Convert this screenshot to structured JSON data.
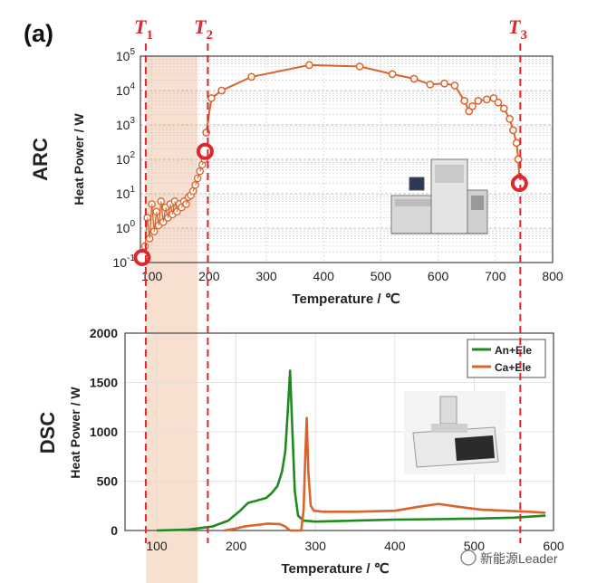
{
  "panel_label": "(a)",
  "watermark": "新能源Leader",
  "colors": {
    "orange": "#d9642b",
    "green": "#1f8a1f",
    "red": "#e0262b",
    "band": "#f6d6c2",
    "grid": "#c8c8c8"
  },
  "markers": {
    "t1": {
      "letter": "T",
      "sub": "1"
    },
    "t2": {
      "letter": "T",
      "sub": "2"
    },
    "t3": {
      "letter": "T",
      "sub": "3"
    }
  },
  "chart_data": [
    {
      "type": "scatter",
      "title": "",
      "side_label": "ARC",
      "xlabel": "Temperature / ℃",
      "ylabel": "Heat Power / W",
      "xlim": [
        80,
        800
      ],
      "ylim": [
        0.1,
        100000
      ],
      "yscale": "log",
      "grid": true,
      "xticks": [
        100,
        200,
        300,
        400,
        500,
        600,
        700,
        800
      ],
      "yticks": [
        {
          "value": 0.1,
          "base": "10",
          "exp": "-1"
        },
        {
          "value": 1,
          "base": "10",
          "exp": "0"
        },
        {
          "value": 10,
          "base": "10",
          "exp": "1"
        },
        {
          "value": 100,
          "base": "10",
          "exp": "2"
        },
        {
          "value": 1000,
          "base": "10",
          "exp": "3"
        },
        {
          "value": 10000,
          "base": "10",
          "exp": "4"
        },
        {
          "value": 100000,
          "base": "10",
          "exp": "5"
        }
      ],
      "early_region": {
        "x": [
          88,
          92,
          96,
          100,
          104,
          108,
          112,
          116,
          120,
          124,
          128,
          132,
          136,
          140,
          144,
          148,
          152,
          156,
          160,
          164,
          168,
          172,
          176,
          180,
          184,
          188,
          192
        ],
        "y": [
          0.3,
          2,
          0.5,
          5,
          0.8,
          3,
          1.2,
          6,
          1.5,
          4,
          2,
          5,
          2.5,
          6,
          3,
          5,
          4,
          6,
          5,
          8,
          9,
          12,
          18,
          28,
          45,
          70,
          100
        ]
      },
      "series": [
        {
          "color": "orange",
          "x": [
            195,
            204,
            222,
            274,
            375,
            463,
            520,
            558,
            586,
            611,
            629,
            646,
            654,
            660,
            670,
            685,
            697,
            705,
            715,
            725,
            731,
            737,
            740,
            742
          ],
          "y": [
            600,
            6000,
            10000,
            25000,
            55000,
            50000,
            30000,
            22000,
            15000,
            16000,
            14000,
            5000,
            2500,
            3500,
            5000,
            5500,
            6000,
            4500,
            3000,
            1500,
            700,
            300,
            100,
            30
          ]
        }
      ],
      "highlight_points": [
        {
          "x": 83,
          "y": 0.14
        },
        {
          "x": 193,
          "y": 170
        },
        {
          "x": 742,
          "y": 20
        }
      ]
    },
    {
      "type": "line",
      "title": "",
      "side_label": "DSC",
      "xlabel": "Temperature / ℃",
      "ylabel": "Heat Power / W",
      "xlim": [
        60,
        600
      ],
      "ylim": [
        0,
        2000
      ],
      "grid": true,
      "xticks": [
        100,
        200,
        300,
        400,
        500,
        600
      ],
      "yticks": [
        0,
        500,
        1000,
        1500,
        2000
      ],
      "legend_position": "top-right",
      "series": [
        {
          "name": "An+Ele",
          "color": "green",
          "x": [
            100,
            140,
            170,
            190,
            205,
            215,
            225,
            238,
            245,
            252,
            258,
            262,
            265,
            268,
            271,
            274,
            278,
            285,
            300,
            350,
            400,
            450,
            500,
            550,
            590
          ],
          "y": [
            0,
            10,
            40,
            100,
            200,
            280,
            300,
            330,
            380,
            450,
            600,
            800,
            1200,
            1620,
            1000,
            400,
            150,
            100,
            90,
            100,
            110,
            115,
            120,
            130,
            150
          ]
        },
        {
          "name": "Ca+Ele",
          "color": "orange",
          "x": [
            185,
            200,
            210,
            225,
            240,
            255,
            262,
            268,
            282,
            285,
            287,
            289,
            291,
            294,
            298,
            310,
            350,
            400,
            430,
            455,
            480,
            510,
            540,
            570,
            590
          ],
          "y": [
            0,
            20,
            40,
            55,
            70,
            65,
            40,
            0,
            0,
            200,
            700,
            1140,
            600,
            250,
            200,
            190,
            190,
            200,
            240,
            270,
            240,
            210,
            200,
            190,
            180
          ]
        }
      ]
    }
  ]
}
